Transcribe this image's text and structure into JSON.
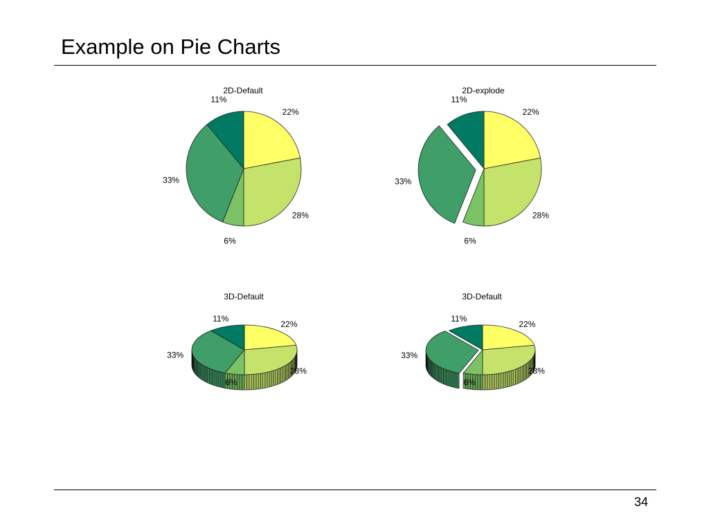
{
  "slide": {
    "title": "Example on Pie Charts",
    "page_number": "34"
  },
  "colors": [
    "#ffff66",
    "#c5e36b",
    "#7bc165",
    "#409e68",
    "#007a62"
  ],
  "chart_data": [
    {
      "type": "pie",
      "title": "2D-Default",
      "variant": "2d",
      "slices": [
        {
          "label": "22%",
          "value": 22
        },
        {
          "label": "28%",
          "value": 28
        },
        {
          "label": "6%",
          "value": 6
        },
        {
          "label": "33%",
          "value": 33
        },
        {
          "label": "11%",
          "value": 11
        }
      ],
      "explode": []
    },
    {
      "type": "pie",
      "title": "2D-explode",
      "variant": "2d",
      "slices": [
        {
          "label": "22%",
          "value": 22
        },
        {
          "label": "28%",
          "value": 28
        },
        {
          "label": "6%",
          "value": 6
        },
        {
          "label": "33%",
          "value": 33
        },
        {
          "label": "11%",
          "value": 11
        }
      ],
      "explode": [
        "33%"
      ]
    },
    {
      "type": "pie",
      "title": "3D-Default",
      "variant": "3d",
      "slices": [
        {
          "label": "22%",
          "value": 22
        },
        {
          "label": "28%",
          "value": 28
        },
        {
          "label": "6%",
          "value": 6
        },
        {
          "label": "33%",
          "value": 33
        },
        {
          "label": "11%",
          "value": 11
        }
      ],
      "explode": []
    },
    {
      "type": "pie",
      "title": "3D-Default",
      "variant": "3d",
      "slices": [
        {
          "label": "22%",
          "value": 22
        },
        {
          "label": "28%",
          "value": 28
        },
        {
          "label": "6%",
          "value": 6
        },
        {
          "label": "33%",
          "value": 33
        },
        {
          "label": "11%",
          "value": 11
        }
      ],
      "explode": [
        "33%"
      ]
    }
  ]
}
